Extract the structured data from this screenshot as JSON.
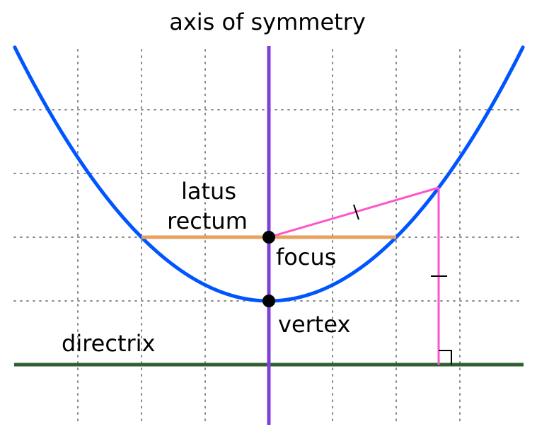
{
  "labels": {
    "axis_of_symmetry": "axis of symmetry",
    "latus_rectum_line1": "latus",
    "latus_rectum_line2": "rectum",
    "focus": "focus",
    "vertex": "vertex",
    "directrix": "directrix"
  },
  "colors": {
    "parabola": "#0055ff",
    "axis": "#8040d8",
    "latus_rectum": "#e8a060",
    "directrix": "#2f5f2f",
    "distance_segments": "#ff55cc",
    "points": "#000000"
  },
  "icons": {
    "equal_length_tick": "tick-mark",
    "right_angle": "right-angle-marker"
  },
  "geometry": {
    "focal_length": 1,
    "vertex": [
      0,
      0
    ],
    "focus": [
      0,
      1
    ],
    "directrix_y": -1,
    "sample_point": [
      2.667,
      1.778
    ],
    "latus_rectum_endpoints": [
      [
        -2,
        1
      ],
      [
        2,
        1
      ]
    ]
  }
}
